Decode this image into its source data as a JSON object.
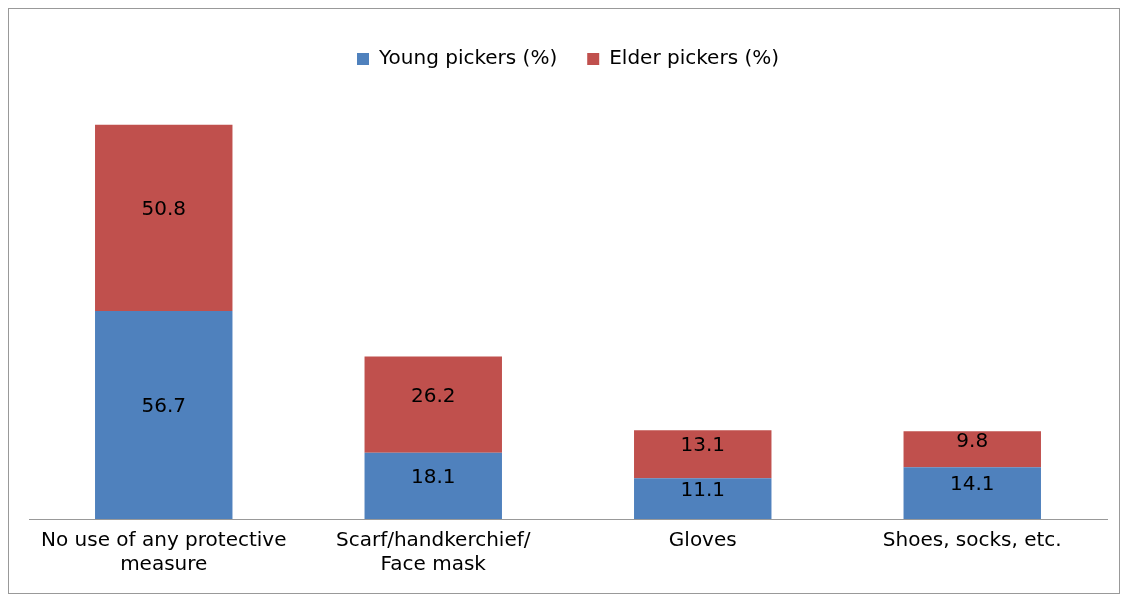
{
  "chart_data": {
    "type": "bar",
    "stacked": true,
    "categories": [
      "No use of any protective\nmeasure",
      "Scarf/handkerchief/\nFace mask",
      "Gloves",
      "Shoes, socks, etc."
    ],
    "series": [
      {
        "name": "Young pickers (%)",
        "color": "#4f81bd",
        "values": [
          56.7,
          18.1,
          11.1,
          14.1
        ]
      },
      {
        "name": "Elder pickers (%)",
        "color": "#c0504d",
        "values": [
          50.8,
          26.2,
          13.1,
          9.8
        ]
      }
    ],
    "data_labels": true,
    "legend": "top",
    "grid": false
  }
}
